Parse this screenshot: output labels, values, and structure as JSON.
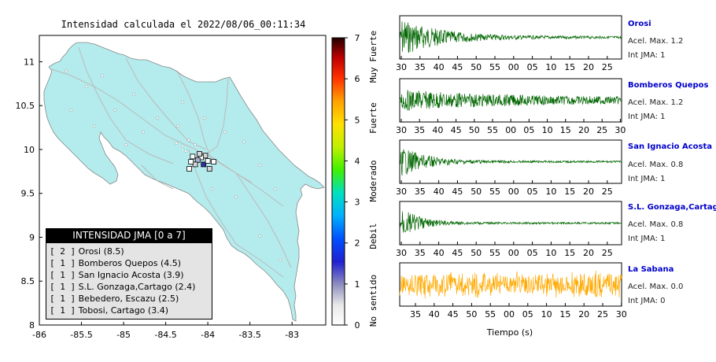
{
  "map": {
    "title": "Intensidad calculada el 2022/08/06_00:11:34",
    "xticks": [
      "-86",
      "-85.5",
      "-85",
      "-84.5",
      "-84",
      "-83.5",
      "-83"
    ],
    "yticks": [
      "11",
      "10.5",
      "10",
      "9.5",
      "9",
      "8.5",
      "8"
    ],
    "land_color": "#b4ebec",
    "legend": {
      "title": "INTENSIDAD JMA [0 a 7]",
      "items": [
        {
          "count": "[ 2 ]",
          "label": "Orosi (8.5)"
        },
        {
          "count": "[ 1 ]",
          "label": "Bomberos Quepos (4.5)"
        },
        {
          "count": "[ 1 ]",
          "label": "San Ignacio Acosta (3.9)"
        },
        {
          "count": "[ 1 ]",
          "label": "S.L. Gonzaga,Cartago (2.4)"
        },
        {
          "count": "[ 1 ]",
          "label": "Bebedero, Escazu (2.5)"
        },
        {
          "count": "[ 1 ]",
          "label": "Tobosi, Cartago (3.4)"
        }
      ]
    }
  },
  "colorbar": {
    "ticks": [
      "0",
      "1",
      "2",
      "3",
      "4",
      "5",
      "6",
      "7"
    ],
    "labels": [
      "No sentido",
      "Debil",
      "Moderado",
      "Fuerte",
      "Muy Fuerte"
    ]
  },
  "waveforms": {
    "xlabel": "Tiempo (s)",
    "stations": [
      {
        "name": "Orosi",
        "accel": "Acel. Max. 1.2",
        "jma": "Int JMA: 1",
        "color": "#006600",
        "ticks": [
          "30",
          "35",
          "40",
          "45",
          "50",
          "55",
          "00",
          "05",
          "10",
          "15",
          "20",
          "25"
        ]
      },
      {
        "name": "Bomberos Quepos",
        "accel": "Acel. Max. 1.2",
        "jma": "Int JMA: 1",
        "color": "#006600",
        "ticks": [
          "30",
          "35",
          "40",
          "45",
          "50",
          "55",
          "00",
          "05",
          "10",
          "15",
          "20",
          "25",
          "30"
        ]
      },
      {
        "name": "San Ignacio Acosta",
        "accel": "Acel. Max. 0.8",
        "jma": "Int JMA: 1",
        "color": "#006600",
        "ticks": [
          "30",
          "35",
          "40",
          "45",
          "50",
          "55",
          "00",
          "05",
          "10",
          "15",
          "20",
          "25"
        ]
      },
      {
        "name": "S.L. Gonzaga,Cartago",
        "accel": "Acel. Max. 0.8",
        "jma": "Int JMA: 1",
        "color": "#006600",
        "ticks": [
          "30",
          "35",
          "40",
          "45",
          "50",
          "55",
          "00",
          "05",
          "10",
          "15",
          "20",
          "25"
        ]
      },
      {
        "name": "La Sabana",
        "accel": "Acel. Max. 0.0",
        "jma": "Int JMA: 0",
        "color": "#ffaa00",
        "ticks": [
          "35",
          "40",
          "45",
          "50",
          "55",
          "00",
          "05",
          "10",
          "15",
          "20",
          "25",
          "30"
        ]
      }
    ]
  },
  "chart_data": [
    {
      "type": "scatter",
      "title": "Intensidad calculada el 2022/08/06_00:11:34",
      "xlabel": "",
      "ylabel": "",
      "xlim": [
        -86,
        -82.6
      ],
      "ylim": [
        8,
        11.3
      ],
      "series": [
        {
          "values": [
            {
              "x": -84.03,
              "y": 9.93
            },
            {
              "x": -84.08,
              "y": 9.91
            },
            {
              "x": -84.12,
              "y": 9.88
            },
            {
              "x": -84.18,
              "y": 9.92
            },
            {
              "x": -84.15,
              "y": 9.83
            },
            {
              "x": -84.05,
              "y": 9.83
            },
            {
              "x": -84.0,
              "y": 9.87
            },
            {
              "x": -84.1,
              "y": 9.95
            },
            {
              "x": -84.2,
              "y": 9.86
            },
            {
              "x": -83.93,
              "y": 9.86
            },
            {
              "x": -84.22,
              "y": 9.78
            },
            {
              "x": -83.98,
              "y": 9.78
            }
          ]
        }
      ]
    },
    {
      "type": "line",
      "title": "Orosi",
      "xlabel": "Tiempo (s)",
      "ylabel": "",
      "ylim": [
        -1.2,
        1.2
      ]
    },
    {
      "type": "line",
      "title": "Bomberos Quepos",
      "xlabel": "Tiempo (s)",
      "ylabel": "",
      "ylim": [
        -1.2,
        1.2
      ]
    },
    {
      "type": "line",
      "title": "San Ignacio Acosta",
      "xlabel": "Tiempo (s)",
      "ylabel": "",
      "ylim": [
        -0.8,
        0.8
      ]
    },
    {
      "type": "line",
      "title": "S.L. Gonzaga,Cartago",
      "xlabel": "Tiempo (s)",
      "ylabel": "",
      "ylim": [
        -0.8,
        0.8
      ]
    },
    {
      "type": "line",
      "title": "La Sabana",
      "xlabel": "Tiempo (s)",
      "ylabel": "",
      "ylim": [
        -0.05,
        0.05
      ]
    }
  ]
}
